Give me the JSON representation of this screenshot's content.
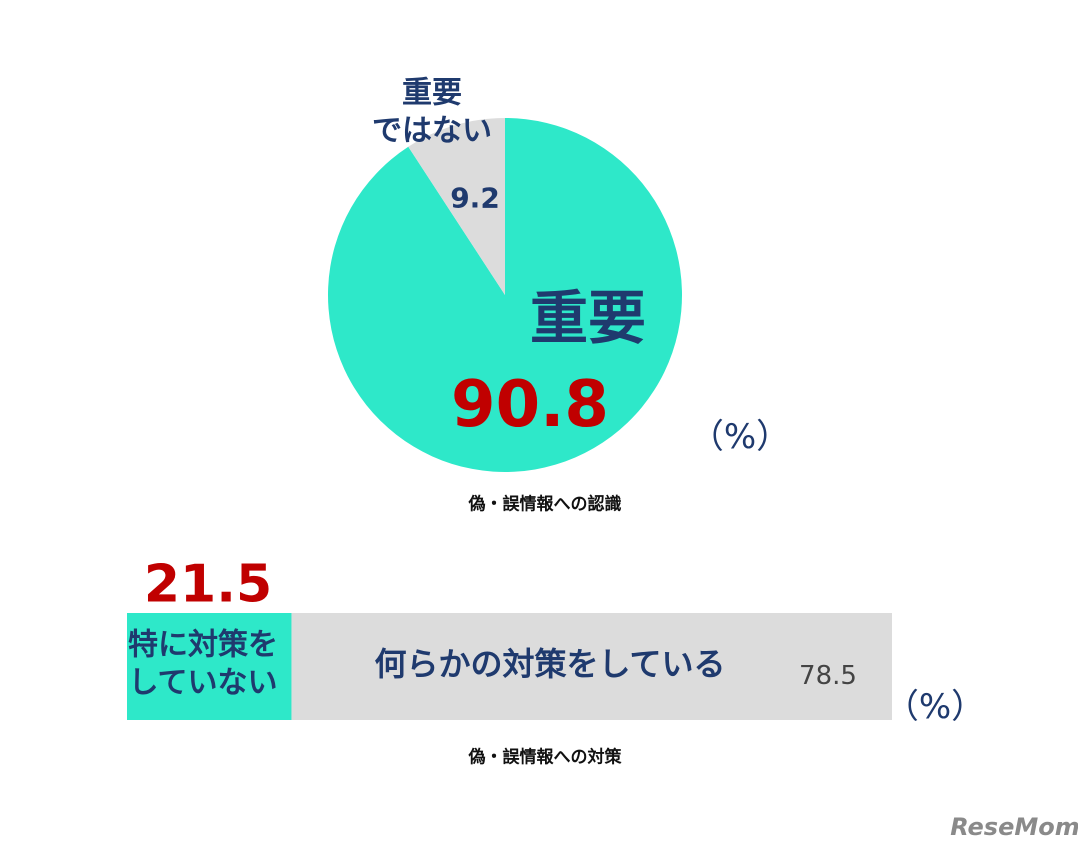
{
  "chart_data": [
    {
      "type": "pie",
      "categories": [
        "重要",
        "重要\nではない"
      ],
      "values": [
        90.8,
        9.2
      ],
      "colors": [
        "#2ee8c9",
        "#dcdcdc"
      ],
      "unit": "（%）",
      "caption": "偽・誤情報への認識"
    },
    {
      "type": "bar",
      "orientation": "horizontal",
      "stacked": true,
      "series": [
        {
          "name": "特に対策を\nしていない",
          "color": "#2ee8c9",
          "values": [
            21.5
          ]
        },
        {
          "name": "何らかの対策をしている",
          "color": "#dcdcdc",
          "values": [
            78.5
          ]
        }
      ],
      "unit": "（%）",
      "caption": "偽・誤情報への対策"
    }
  ],
  "watermark": "ReseMom"
}
